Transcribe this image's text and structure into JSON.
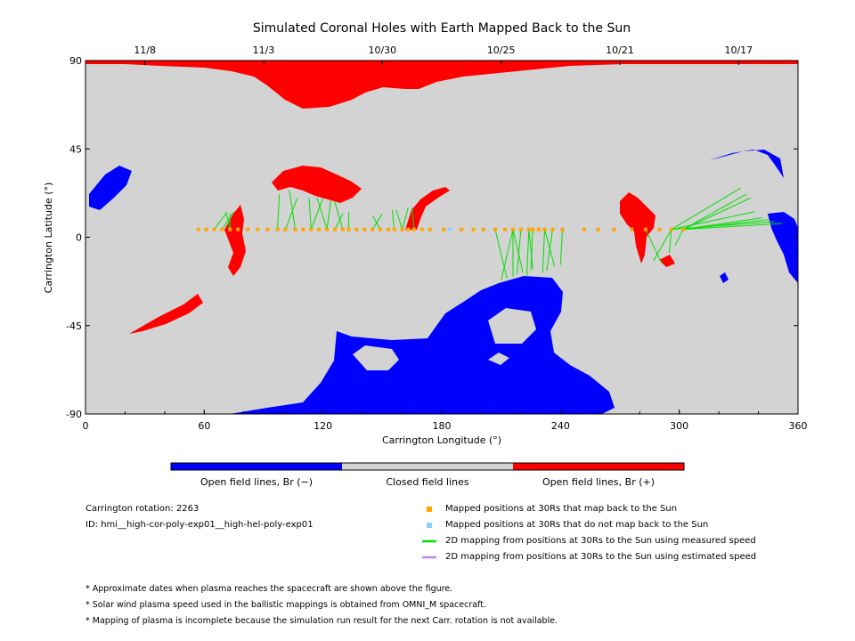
{
  "chart_data": {
    "type": "map",
    "title": "Simulated Coronal Holes with Earth Mapped Back to the Sun",
    "xlabel": "Carrington Longitude (°)",
    "ylabel": "Carrington Latitude (°)",
    "xlim": [
      0,
      360
    ],
    "ylim": [
      -90,
      90
    ],
    "x_ticks": [
      "0",
      "60",
      "120",
      "180",
      "240",
      "300",
      "360"
    ],
    "y_ticks": [
      "90",
      "45",
      "0",
      "-45",
      "-90"
    ],
    "top_dates": [
      {
        "label": "11/8",
        "lon": 30
      },
      {
        "label": "11/3",
        "lon": 90
      },
      {
        "label": "10/30",
        "lon": 150
      },
      {
        "label": "10/25",
        "lon": 210
      },
      {
        "label": "10/21",
        "lon": 270
      },
      {
        "label": "10/17",
        "lon": 330
      }
    ],
    "colorbar": [
      {
        "label": "Open field lines, Br (−)",
        "color": "#0000ff"
      },
      {
        "label": "Closed field lines",
        "color": "#d3d3d3"
      },
      {
        "label": "Open field lines, Br (+)",
        "color": "#ff0000"
      }
    ],
    "colors": {
      "negative": "#0000ff",
      "closed": "#d3d3d3",
      "positive": "#ff0000",
      "mapped": "#ffa500",
      "unmapped": "#87cefa",
      "measured": "#00e000",
      "estimated": "#bb88ee"
    },
    "mapped_points_lon": [
      57,
      61,
      65,
      69,
      73,
      77,
      82,
      87,
      92,
      97,
      101,
      106,
      110,
      114,
      118,
      122,
      126,
      130,
      133,
      137,
      141,
      145,
      149,
      153,
      156,
      160,
      163,
      166,
      170,
      174,
      181,
      190,
      196,
      201,
      207,
      212,
      216,
      220,
      224,
      226,
      229,
      232,
      236,
      241,
      252,
      259,
      267,
      276,
      283,
      290,
      296,
      302
    ],
    "unmapped_points_lon": [
      184
    ],
    "field_line_targets": [
      [
        71,
        12
      ],
      [
        73,
        12
      ],
      [
        71,
        13
      ],
      [
        75,
        13
      ],
      [
        98,
        22
      ],
      [
        103,
        24
      ],
      [
        107,
        20
      ],
      [
        113,
        20
      ],
      [
        117,
        20
      ],
      [
        120,
        20
      ],
      [
        124,
        19
      ],
      [
        126,
        18
      ],
      [
        130,
        12
      ],
      [
        133,
        13
      ],
      [
        145,
        11
      ],
      [
        150,
        12
      ],
      [
        155,
        14
      ],
      [
        157,
        14
      ],
      [
        163,
        15
      ],
      [
        165,
        15
      ],
      [
        210,
        -22
      ],
      [
        213,
        -21
      ],
      [
        216,
        -20
      ],
      [
        218,
        -19
      ],
      [
        221,
        -18
      ],
      [
        223,
        -20
      ],
      [
        225,
        -17
      ],
      [
        226,
        -16
      ],
      [
        231,
        -18
      ],
      [
        233,
        -17
      ],
      [
        237,
        -15
      ],
      [
        240,
        -14
      ],
      [
        287,
        -12
      ],
      [
        291,
        -13
      ],
      [
        295,
        -8
      ],
      [
        298,
        -4
      ],
      [
        331,
        25
      ],
      [
        334,
        22
      ],
      [
        336,
        20
      ],
      [
        338,
        13
      ],
      [
        342,
        10
      ],
      [
        345,
        9
      ],
      [
        348,
        8
      ],
      [
        352,
        7
      ]
    ]
  },
  "legend": {
    "rotation_label": "Carrington rotation: 2263",
    "id_label": "ID: hmi__high-cor-poly-exp01__high-hel-poly-exp01",
    "items": [
      "Mapped positions at 30Rs that map back to the Sun",
      "Mapped positions at 30Rs that do not map back to the Sun",
      "2D mapping from positions at 30Rs to the Sun using measured speed",
      "2D mapping from positions at 30Rs to the Sun using estimated speed"
    ]
  },
  "notes": [
    "* Approximate dates when plasma reaches the spacecraft are shown above the figure.",
    "* Solar wind plasma speed used in the ballistic mappings is obtained from OMNI_M spacecraft.",
    "* Mapping of plasma is incomplete because the simulation run result for the next Carr. rotation is not available."
  ]
}
